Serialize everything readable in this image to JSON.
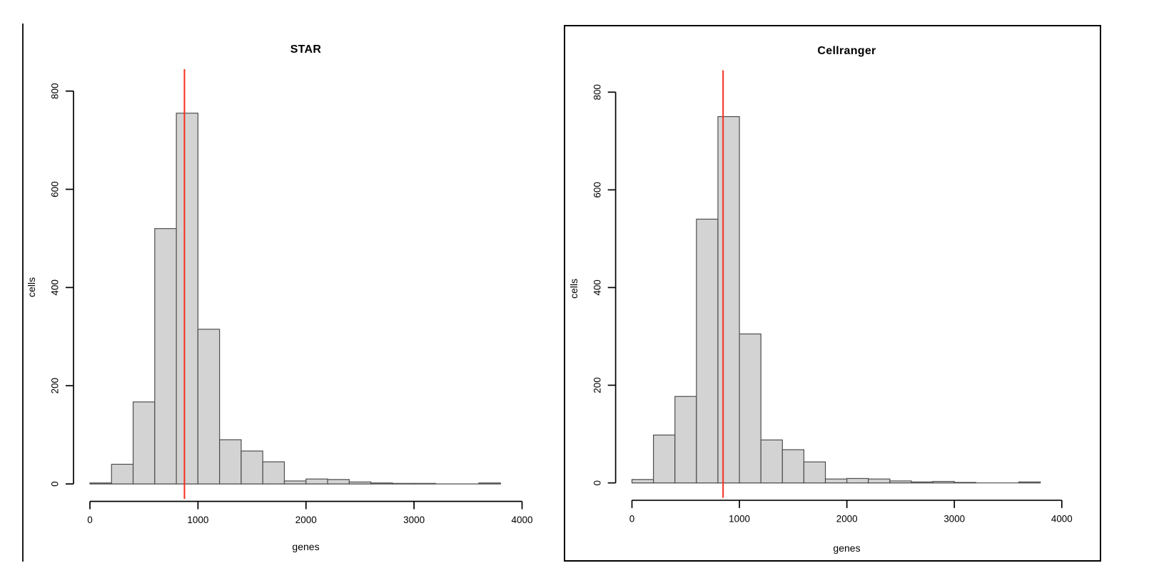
{
  "page": {
    "background": "#ffffff"
  },
  "chart_data": [
    {
      "type": "bar",
      "panel": "left",
      "title": "STAR",
      "xlabel": "genes",
      "ylabel": "cells",
      "boxed": false,
      "grid": false,
      "legend": "none",
      "xlim": [
        0,
        4000
      ],
      "ylim": [
        0,
        800
      ],
      "x_ticks": [
        0,
        1000,
        2000,
        3000,
        4000
      ],
      "y_ticks": [
        0,
        200,
        400,
        600,
        800
      ],
      "bin_start": 0,
      "bin_width": 200,
      "counts": [
        2,
        40,
        167,
        520,
        755,
        315,
        90,
        67,
        45,
        6,
        10,
        9,
        4,
        2,
        1,
        1,
        0,
        0,
        2
      ],
      "red_line_x": 875,
      "colors": {
        "bar_fill": "#d3d3d3",
        "bar_border": "#4d4d4d",
        "red_line": "#f62d20",
        "axis": "#000000"
      }
    },
    {
      "type": "bar",
      "panel": "right",
      "title": "Cellranger",
      "xlabel": "genes",
      "ylabel": "cells",
      "boxed": true,
      "grid": false,
      "legend": "none",
      "xlim": [
        0,
        4000
      ],
      "ylim": [
        0,
        800
      ],
      "x_ticks": [
        0,
        1000,
        2000,
        3000,
        4000
      ],
      "y_ticks": [
        0,
        200,
        400,
        600,
        800
      ],
      "bin_start": 0,
      "bin_width": 200,
      "counts": [
        7,
        98,
        177,
        540,
        750,
        305,
        88,
        68,
        43,
        8,
        9,
        8,
        4,
        2,
        3,
        1,
        0,
        0,
        2
      ],
      "red_line_x": 848,
      "colors": {
        "bar_fill": "#d3d3d3",
        "bar_border": "#4d4d4d",
        "red_line": "#f62d20",
        "axis": "#000000"
      }
    }
  ]
}
